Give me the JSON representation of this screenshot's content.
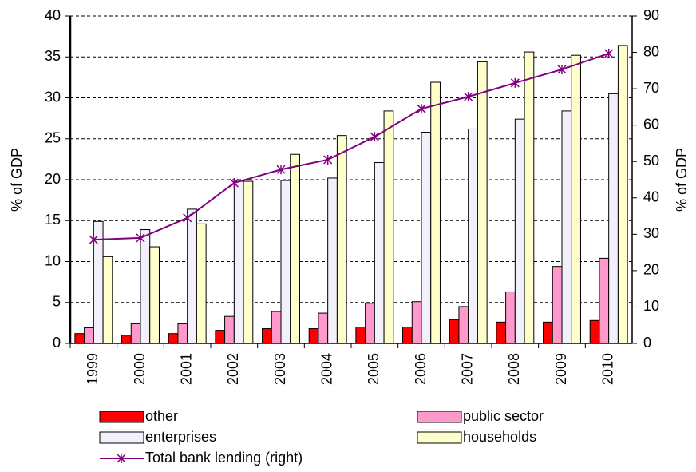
{
  "chart_data": {
    "type": "bar",
    "ylabel": "% of GDP",
    "y2label": "% of GDP",
    "categories": [
      "1999",
      "2000",
      "2001",
      "2002",
      "2003",
      "2004",
      "2005",
      "2006",
      "2007",
      "2008",
      "2009",
      "2010"
    ],
    "series": [
      {
        "name": "other",
        "color": "#ff0000",
        "values": [
          1.2,
          1.0,
          1.2,
          1.6,
          1.8,
          1.8,
          2.0,
          2.0,
          2.9,
          2.6,
          2.6,
          2.8
        ]
      },
      {
        "name": "public sector",
        "color": "#ff99cc",
        "values": [
          1.9,
          2.4,
          2.4,
          3.3,
          3.9,
          3.7,
          4.9,
          5.1,
          4.5,
          6.3,
          9.4,
          10.4
        ]
      },
      {
        "name": "enterprises",
        "color": "#f2f0fb",
        "values": [
          14.9,
          13.9,
          16.4,
          19.8,
          19.9,
          20.2,
          22.1,
          25.8,
          26.2,
          27.4,
          28.4,
          30.5
        ]
      },
      {
        "name": "households",
        "color": "#ffffcc",
        "values": [
          10.6,
          11.8,
          14.6,
          19.8,
          23.1,
          25.4,
          28.4,
          31.9,
          34.4,
          35.6,
          35.2,
          36.4
        ]
      },
      {
        "name": "Total bank lending (right)",
        "color": "#800080",
        "type": "line",
        "axis": "y2",
        "values": [
          28.5,
          29.0,
          34.5,
          44.1,
          47.8,
          50.5,
          56.8,
          64.5,
          67.8,
          71.6,
          75.3,
          79.7
        ]
      }
    ],
    "ylim": [
      0,
      40
    ],
    "yticks": [
      0,
      5,
      10,
      15,
      20,
      25,
      30,
      35,
      40
    ],
    "y2lim": [
      0,
      90
    ],
    "y2ticks": [
      0,
      10,
      20,
      30,
      40,
      50,
      60,
      70,
      80,
      90
    ],
    "grid": true,
    "legend": "bottom"
  }
}
